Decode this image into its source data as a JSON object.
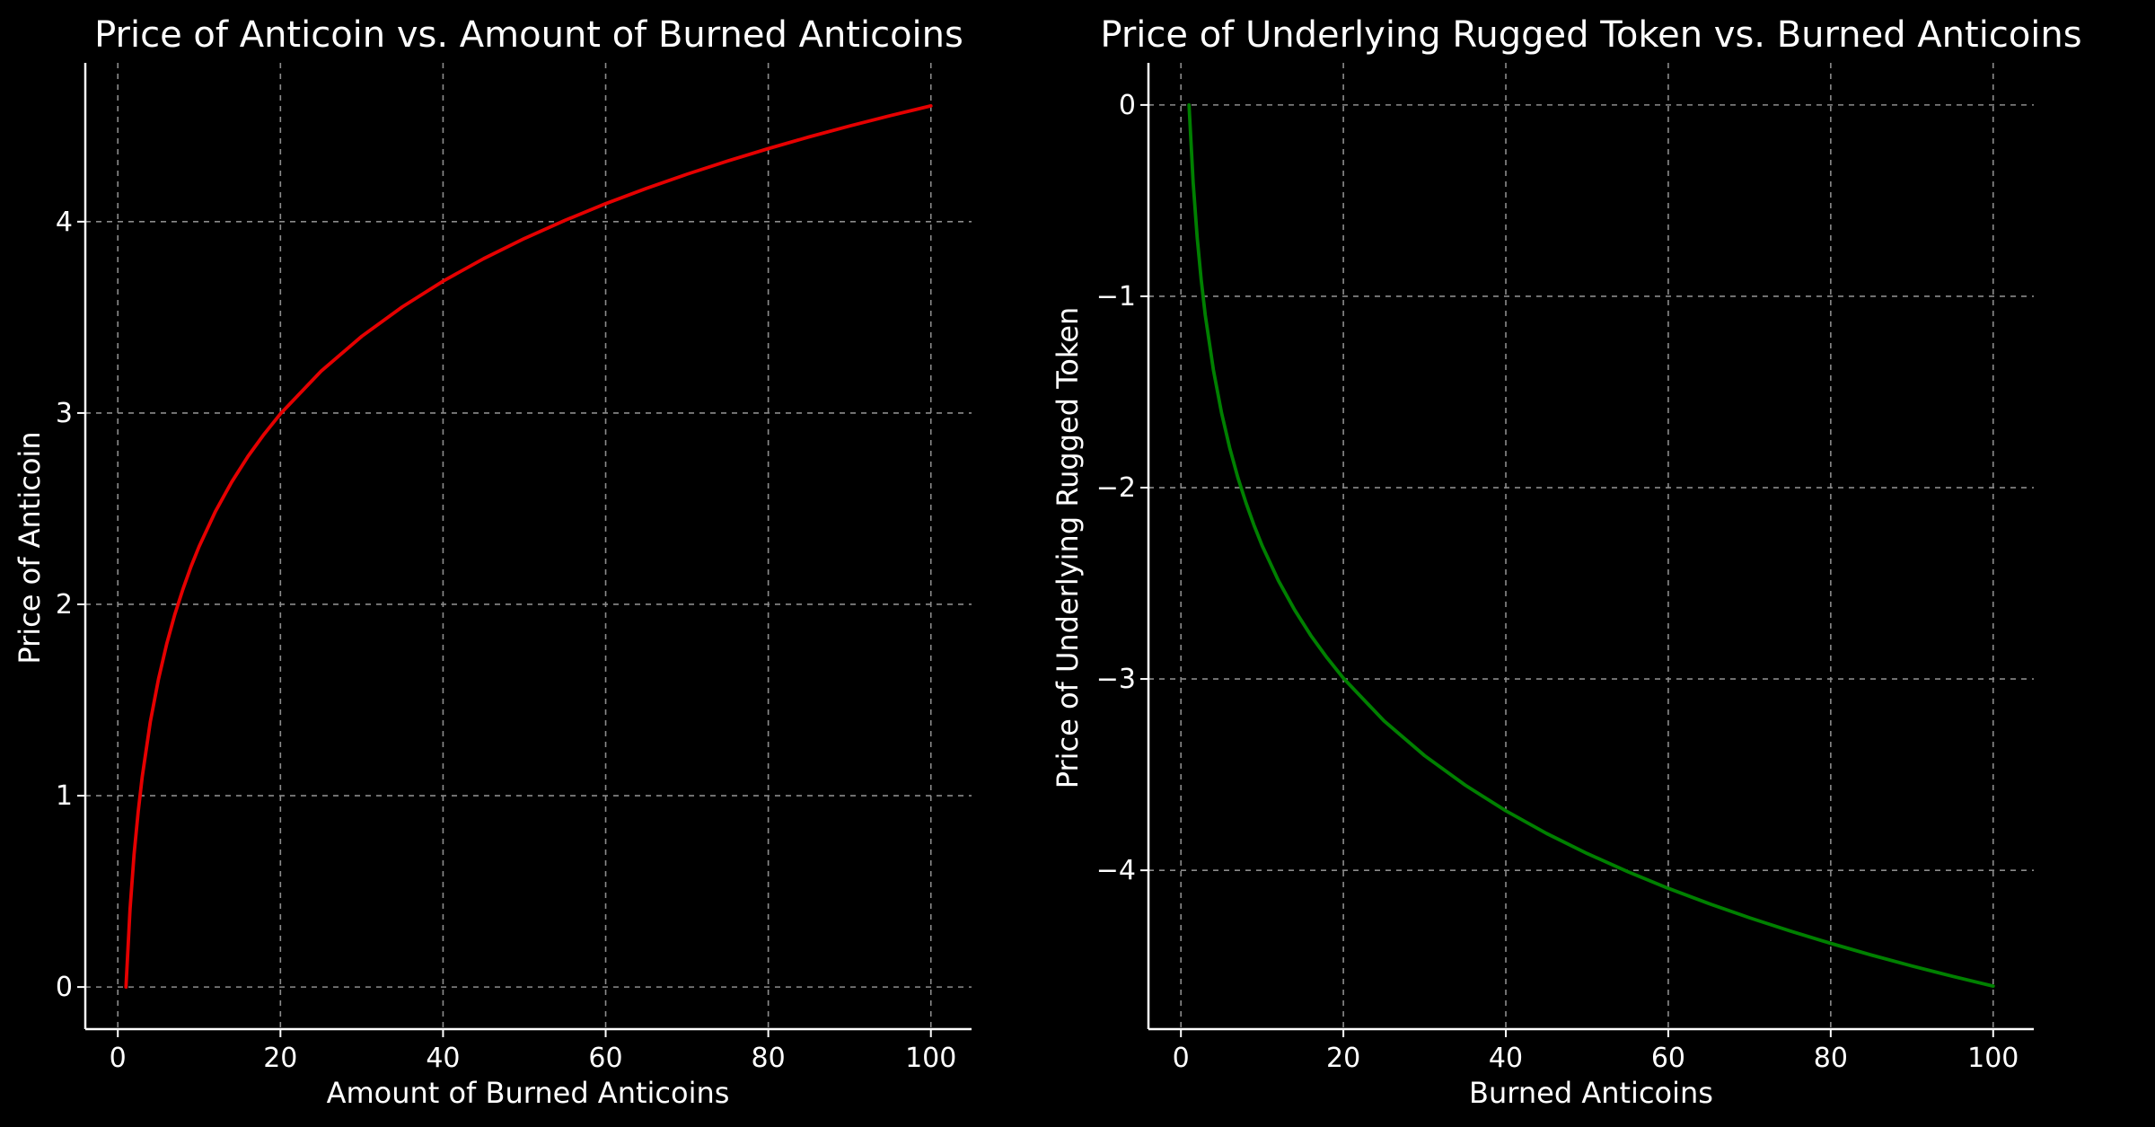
{
  "chart_data": [
    {
      "type": "line",
      "title": "Price of Anticoin vs. Amount of Burned Anticoins",
      "xlabel": "Amount of Burned Anticoins",
      "ylabel": "Price of Anticoin",
      "xlim": [
        -4,
        105
      ],
      "ylim": [
        -0.22,
        4.83
      ],
      "xticks": [
        0,
        20,
        40,
        60,
        80,
        100
      ],
      "yticks": [
        0,
        1,
        2,
        3,
        4
      ],
      "grid": true,
      "series": [
        {
          "color": "#e50000",
          "x": [
            1,
            1.5,
            2,
            2.5,
            3,
            4,
            5,
            6,
            7,
            8,
            9,
            10,
            12,
            14,
            16,
            18,
            20,
            25,
            30,
            35,
            40,
            45,
            50,
            55,
            60,
            65,
            70,
            75,
            80,
            85,
            90,
            95,
            100
          ],
          "y": [
            0,
            0.405,
            0.693,
            0.916,
            1.099,
            1.386,
            1.609,
            1.792,
            1.946,
            2.079,
            2.197,
            2.303,
            2.485,
            2.639,
            2.773,
            2.89,
            2.996,
            3.219,
            3.401,
            3.555,
            3.689,
            3.807,
            3.912,
            4.007,
            4.094,
            4.174,
            4.248,
            4.317,
            4.382,
            4.443,
            4.5,
            4.554,
            4.605
          ]
        }
      ]
    },
    {
      "type": "line",
      "title": "Price of Underlying Rugged Token vs. Burned Anticoins",
      "xlabel": "Burned Anticoins",
      "ylabel": "Price of Underlying Rugged Token",
      "xlim": [
        -4,
        105
      ],
      "ylim": [
        -4.83,
        0.22
      ],
      "xticks": [
        0,
        20,
        40,
        60,
        80,
        100
      ],
      "yticks": [
        0,
        -1,
        -2,
        -3,
        -4
      ],
      "grid": true,
      "series": [
        {
          "color": "#008000",
          "x": [
            1,
            1.5,
            2,
            2.5,
            3,
            4,
            5,
            6,
            7,
            8,
            9,
            10,
            12,
            14,
            16,
            18,
            20,
            25,
            30,
            35,
            40,
            45,
            50,
            55,
            60,
            65,
            70,
            75,
            80,
            85,
            90,
            95,
            100
          ],
          "y": [
            0,
            -0.405,
            -0.693,
            -0.916,
            -1.099,
            -1.386,
            -1.609,
            -1.792,
            -1.946,
            -2.079,
            -2.197,
            -2.303,
            -2.485,
            -2.639,
            -2.773,
            -2.89,
            -2.996,
            -3.219,
            -3.401,
            -3.555,
            -3.689,
            -3.807,
            -3.912,
            -4.007,
            -4.094,
            -4.174,
            -4.248,
            -4.317,
            -4.382,
            -4.443,
            -4.5,
            -4.554,
            -4.605
          ]
        }
      ]
    }
  ]
}
